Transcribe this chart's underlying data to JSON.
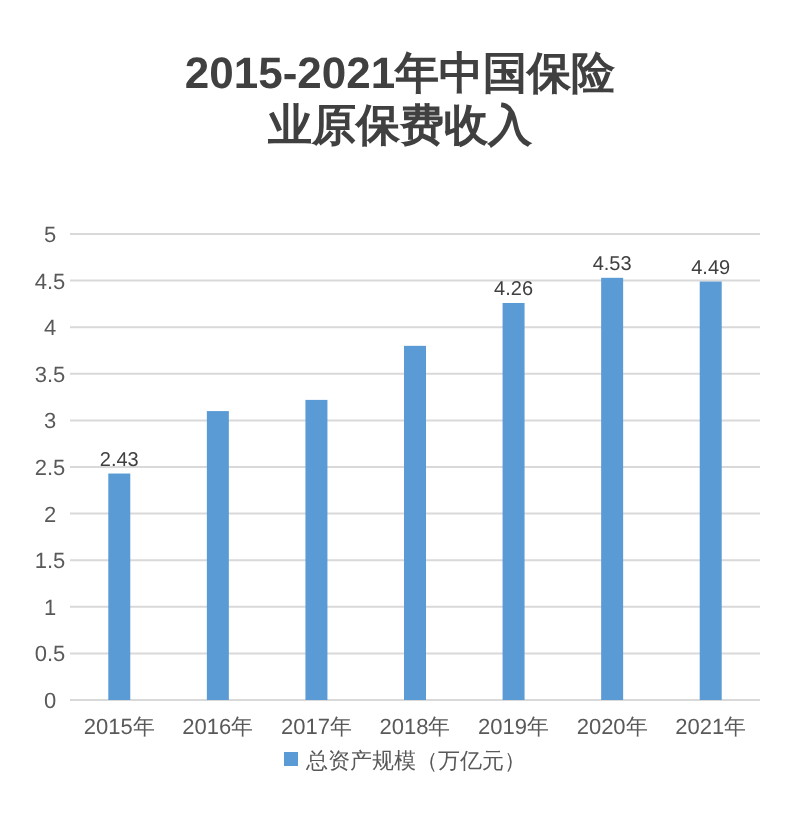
{
  "chart_data": {
    "type": "bar",
    "title": "2015-2021年中国保险业原保费收入",
    "categories": [
      "2015年",
      "2016年",
      "2017年",
      "2018年",
      "2019年",
      "2020年",
      "2021年"
    ],
    "series": [
      {
        "name": "总资产规模（万亿元）",
        "color": "#5b9bd5",
        "values": [
          2.43,
          3.1,
          3.22,
          3.8,
          4.26,
          4.53,
          4.49
        ],
        "value_labels": [
          "2.43",
          null,
          null,
          null,
          "4.26",
          "4.53",
          "4.49"
        ]
      }
    ],
    "ylim": [
      0,
      5
    ],
    "yticks": [
      0,
      0.5,
      1,
      1.5,
      2,
      2.5,
      3,
      3.5,
      4,
      4.5,
      5
    ],
    "grid": "y",
    "legend": "bottom"
  }
}
